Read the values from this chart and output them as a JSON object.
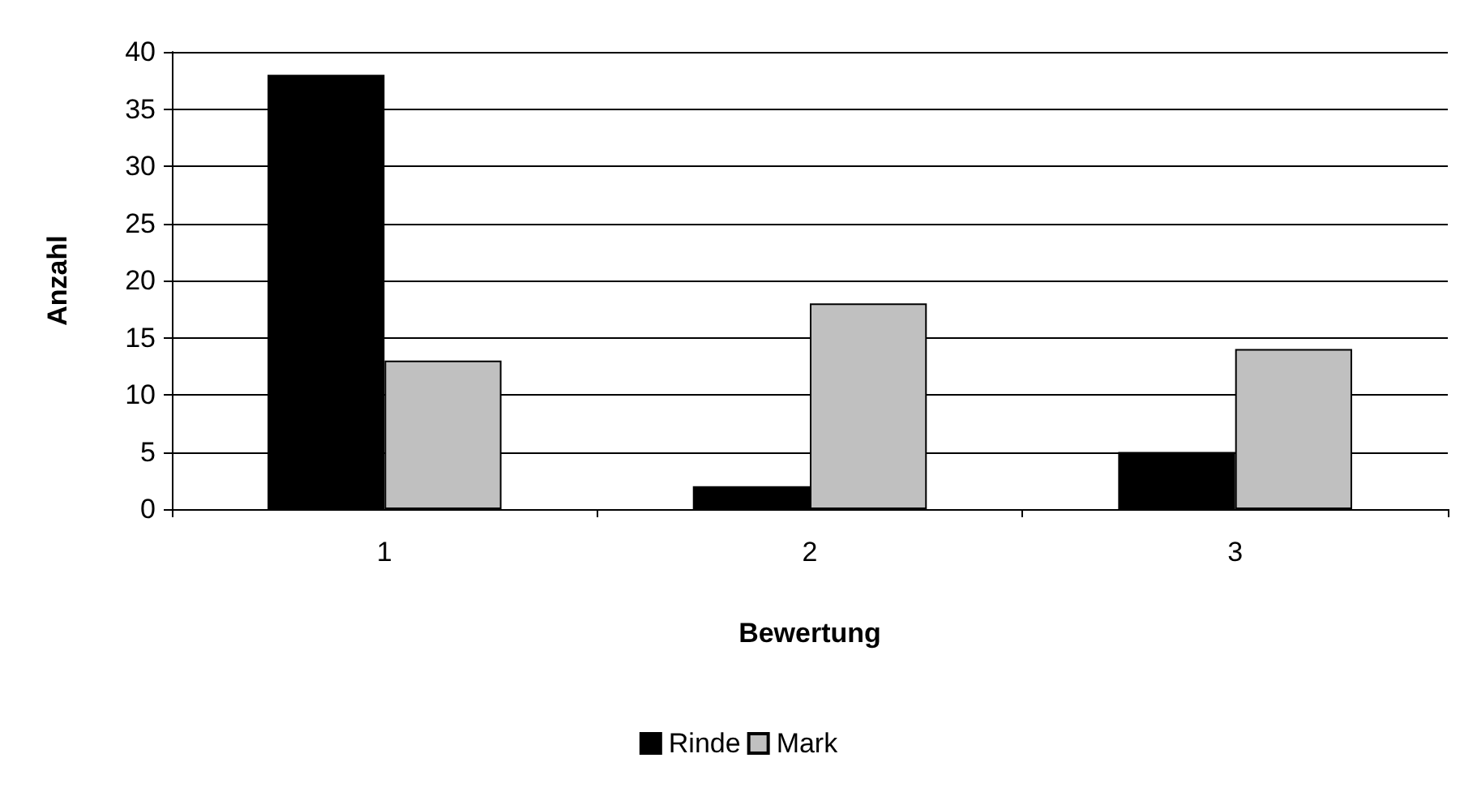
{
  "chart_data": {
    "type": "bar",
    "xlabel": "Bewertung",
    "ylabel": "Anzahl",
    "categories": [
      "1",
      "2",
      "3"
    ],
    "series": [
      {
        "name": "Rinde",
        "color": "#000000",
        "values": [
          38,
          2,
          5
        ]
      },
      {
        "name": "Mark",
        "color": "#c0c0c0",
        "values": [
          13,
          18,
          14
        ]
      }
    ],
    "ylim": [
      0,
      40
    ],
    "yticks": [
      0,
      5,
      10,
      15,
      20,
      25,
      30,
      35,
      40
    ],
    "grid": "y",
    "legend": "bottom"
  }
}
